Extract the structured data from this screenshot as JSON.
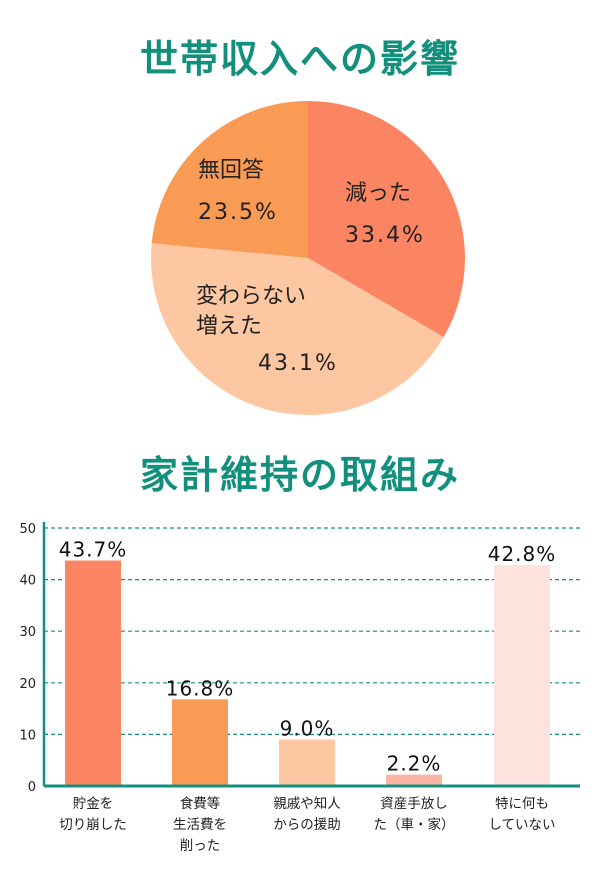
{
  "chart_data": [
    {
      "type": "pie",
      "title": "世帯収入への影響",
      "slices": [
        {
          "label_lines": [
            "減った"
          ],
          "value": 33.4,
          "value_label": "33.4%",
          "color": "#fb8562"
        },
        {
          "label_lines": [
            "変わらない",
            "増えた"
          ],
          "value": 43.1,
          "value_label": "43.1%",
          "color": "#fdc7a1"
        },
        {
          "label_lines": [
            "無回答"
          ],
          "value": 23.5,
          "value_label": "23.5%",
          "color": "#f99a55"
        }
      ]
    },
    {
      "type": "bar",
      "title": "家計維持の取組み",
      "ylim": [
        0,
        50
      ],
      "yticks": [
        0,
        10,
        20,
        30,
        40,
        50
      ],
      "axis_color": "#12907d",
      "categories": [
        [
          "貯金を",
          "切り崩した"
        ],
        [
          "食費等",
          "生活費を",
          "削った"
        ],
        [
          "親戚や知人",
          "からの援助"
        ],
        [
          "資産手放し",
          "た（車・家）"
        ],
        [
          "特に何も",
          "していない"
        ]
      ],
      "values": [
        43.7,
        16.8,
        9.0,
        2.2,
        42.8
      ],
      "value_labels": [
        "43.7%",
        "16.8%",
        "9.0%",
        "2.2%",
        "42.8%"
      ],
      "colors": [
        "#fb8562",
        "#f99a55",
        "#fdc7a1",
        "#fcb5a3",
        "#fde2de"
      ]
    }
  ]
}
